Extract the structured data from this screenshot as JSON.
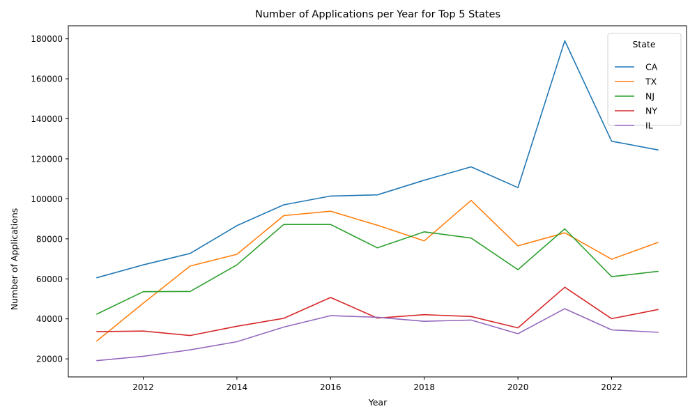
{
  "chart_data": {
    "type": "line",
    "title": "Number of Applications per Year for Top 5 States",
    "xlabel": "Year",
    "ylabel": "Number of Applications",
    "x": [
      2011,
      2012,
      2013,
      2014,
      2015,
      2016,
      2017,
      2018,
      2019,
      2020,
      2021,
      2022,
      2023
    ],
    "xlim": [
      2010.4,
      2023.6
    ],
    "ylim": [
      11000,
      186500
    ],
    "xticks": [
      2012,
      2014,
      2016,
      2018,
      2020,
      2022
    ],
    "yticks": [
      20000,
      40000,
      60000,
      80000,
      100000,
      120000,
      140000,
      160000,
      180000
    ],
    "xtick_labels": [
      "2012",
      "2014",
      "2016",
      "2018",
      "2020",
      "2022"
    ],
    "ytick_labels": [
      "20000",
      "40000",
      "60000",
      "80000",
      "100000",
      "120000",
      "140000",
      "160000",
      "180000"
    ],
    "grid": false,
    "legend": {
      "title": "State",
      "position": "top-right"
    },
    "series": [
      {
        "name": "CA",
        "color": "#1f77b4",
        "values": [
          60500,
          67000,
          72700,
          86600,
          97000,
          101400,
          102000,
          109300,
          116000,
          105600,
          179000,
          128800,
          124400
        ]
      },
      {
        "name": "TX",
        "color": "#ff7f0e",
        "values": [
          28800,
          47800,
          66400,
          72300,
          91600,
          93800,
          86800,
          79000,
          99200,
          76500,
          83000,
          69800,
          78300
        ]
      },
      {
        "name": "NJ",
        "color": "#2ca02c",
        "values": [
          42300,
          53600,
          53700,
          67000,
          87200,
          87200,
          75500,
          83500,
          80400,
          64600,
          85000,
          61100,
          63800
        ]
      },
      {
        "name": "NY",
        "color": "#d62728",
        "values": [
          33600,
          33900,
          31700,
          36300,
          40300,
          50700,
          40400,
          42100,
          41200,
          35500,
          55800,
          40100,
          44700
        ]
      },
      {
        "name": "IL",
        "color": "#9467bd",
        "values": [
          19100,
          21300,
          24500,
          28600,
          35900,
          41600,
          40800,
          38800,
          39400,
          32600,
          45100,
          34500,
          33300
        ]
      }
    ]
  }
}
